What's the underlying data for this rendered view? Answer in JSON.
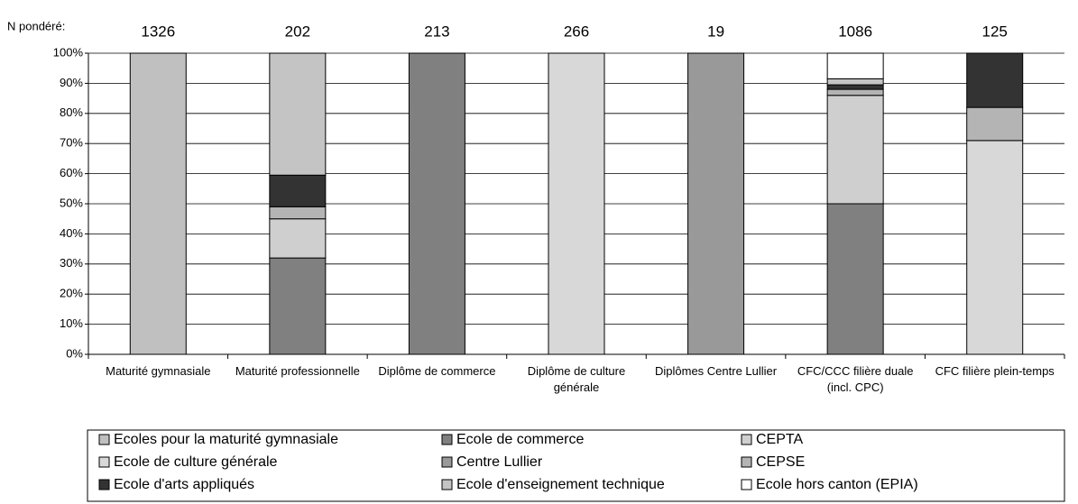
{
  "chart_data": {
    "type": "stacked_bar",
    "n_label": "N pondéré:",
    "n_values": [
      1326,
      202,
      213,
      266,
      19,
      1086,
      125
    ],
    "categories": [
      "Maturité gymnasiale",
      "Maturité professionnelle",
      "Diplôme de commerce",
      "Diplôme de culture générale",
      "Diplômes Centre Lullier",
      "CFC/CCC filière duale (incl. CPC)",
      "CFC filière plein-temps"
    ],
    "ylim": [
      0,
      100
    ],
    "yticks": [
      {
        "value": 0,
        "label": "0%"
      },
      {
        "value": 10,
        "label": "10%"
      },
      {
        "value": 20,
        "label": "20%"
      },
      {
        "value": 30,
        "label": "30%"
      },
      {
        "value": 40,
        "label": "40%"
      },
      {
        "value": 50,
        "label": "50%"
      },
      {
        "value": 60,
        "label": "60%"
      },
      {
        "value": 70,
        "label": "70%"
      },
      {
        "value": 80,
        "label": "80%"
      },
      {
        "value": 90,
        "label": "90%"
      },
      {
        "value": 100,
        "label": "100%"
      }
    ],
    "grid": true,
    "series": [
      {
        "name": "Ecoles pour la maturité gymnasiale",
        "color": "#c0c0c0",
        "values": [
          100,
          0,
          0,
          0,
          0,
          0,
          0
        ]
      },
      {
        "name": "Ecole de commerce",
        "color": "#808080",
        "values": [
          0,
          32,
          100,
          0,
          0,
          50,
          0
        ]
      },
      {
        "name": "CEPTA",
        "color": "#cfcfcf",
        "values": [
          0,
          13,
          0,
          0,
          0,
          36,
          0
        ]
      },
      {
        "name": "Ecole de culture générale",
        "color": "#d8d8d8",
        "values": [
          0,
          0,
          0,
          100,
          0,
          0,
          71
        ]
      },
      {
        "name": "Centre Lullier",
        "color": "#999999",
        "values": [
          0,
          0,
          0,
          0,
          100,
          0,
          0
        ]
      },
      {
        "name": "CEPSE",
        "color": "#b4b4b4",
        "values": [
          0,
          4,
          0,
          0,
          0,
          2,
          11
        ]
      },
      {
        "name": "Ecole d'arts appliqués",
        "color": "#333333",
        "values": [
          0,
          10.5,
          0,
          0,
          0,
          1.5,
          18
        ]
      },
      {
        "name": "Ecole d'enseignement technique",
        "color": "#c4c4c4",
        "values": [
          0,
          40.5,
          0,
          0,
          0,
          2,
          0
        ]
      },
      {
        "name": "Ecole hors canton (EPIA)",
        "color": "#ffffff",
        "values": [
          0,
          0,
          0,
          0,
          0,
          8.5,
          0
        ]
      }
    ]
  }
}
